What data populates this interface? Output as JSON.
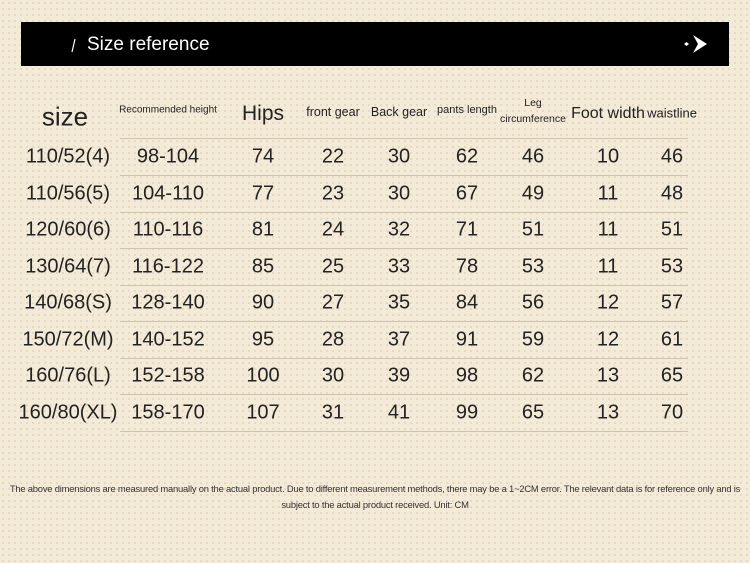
{
  "header": {
    "title": "Size reference"
  },
  "table": {
    "columns": [
      "size",
      "Recommended height",
      "Hips",
      "front gear",
      "Back gear",
      "pants length",
      "Leg circumference",
      "Foot width",
      "waistline"
    ],
    "rows": [
      [
        "110/52(4)",
        "98-104",
        74,
        22,
        30,
        62,
        46,
        10,
        46
      ],
      [
        "110/56(5)",
        "104-110",
        77,
        23,
        30,
        67,
        49,
        11,
        48
      ],
      [
        "120/60(6)",
        "110-116",
        81,
        24,
        32,
        71,
        51,
        11,
        51
      ],
      [
        "130/64(7)",
        "116-122",
        85,
        25,
        33,
        78,
        53,
        11,
        53
      ],
      [
        "140/68(S)",
        "128-140",
        90,
        27,
        35,
        84,
        56,
        12,
        57
      ],
      [
        "150/72(M)",
        "140-152",
        95,
        28,
        37,
        91,
        59,
        12,
        61
      ],
      [
        "160/76(L)",
        "152-158",
        100,
        30,
        39,
        98,
        62,
        13,
        65
      ],
      [
        "160/80(XL)",
        "158-170",
        107,
        31,
        41,
        99,
        65,
        13,
        70
      ]
    ]
  },
  "footnote": "The above dimensions are measured manually on the actual product. Due to different measurement methods, there may be a 1~2CM error. The relevant data is for reference only and is subject to the actual product received. Unit: CM"
}
